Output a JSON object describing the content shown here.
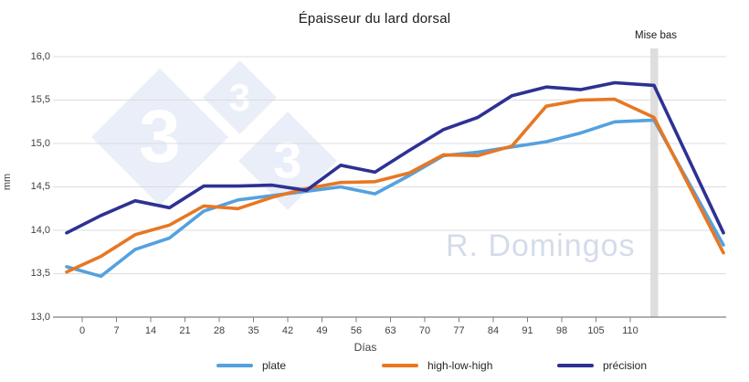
{
  "title": "Épaisseur du lard dorsal",
  "annotation": {
    "label": "Mise bas"
  },
  "watermark": {
    "text": "R. Domingos",
    "logo_digit": "3"
  },
  "axes": {
    "ylabel": "mm",
    "xlabel": "Días"
  },
  "legend": {
    "items": [
      {
        "label": "plate",
        "color": "#54a1e0"
      },
      {
        "label": "high-low-high",
        "color": "#e87722"
      },
      {
        "label": "précision",
        "color": "#2e3192"
      }
    ]
  },
  "chart_data": {
    "type": "line",
    "title": "Épaisseur du lard dorsal",
    "xlabel": "Días",
    "ylabel": "mm",
    "ylim": [
      13.0,
      16.0
    ],
    "ytick_step": 0.5,
    "ytick_labels": [
      "16,0",
      "15,5",
      "15,0",
      "14,5",
      "14,0",
      "13,5",
      "13,0"
    ],
    "x_days": [
      "0",
      "7",
      "14",
      "21",
      "28",
      "35",
      "42",
      "49",
      "56",
      "63",
      "70",
      "77",
      "84",
      "91",
      "98",
      "105",
      "110"
    ],
    "extra_points": [
      "mise-bas-bar",
      "post-farrowing-final"
    ],
    "annotation": {
      "label": "Mise bas",
      "style": "vertical-gray-bar",
      "position": "after day 110"
    },
    "grid": "horizontal",
    "legend_position": "bottom",
    "series": [
      {
        "name": "plate",
        "color": "#54a1e0",
        "values": [
          13.58,
          13.47,
          13.78,
          13.91,
          14.22,
          14.35,
          14.4,
          14.45,
          14.5,
          14.42,
          14.63,
          14.86,
          14.9,
          14.96,
          15.02,
          15.12,
          15.25,
          15.27,
          13.83
        ]
      },
      {
        "name": "high-low-high",
        "color": "#e87722",
        "values": [
          13.52,
          13.7,
          13.95,
          14.06,
          14.28,
          14.25,
          14.38,
          14.48,
          14.55,
          14.56,
          14.66,
          14.87,
          14.86,
          14.97,
          15.43,
          15.5,
          15.51,
          15.3,
          13.74
        ]
      },
      {
        "name": "précision",
        "color": "#2e3192",
        "values": [
          13.97,
          14.17,
          14.34,
          14.26,
          14.51,
          14.51,
          14.52,
          14.46,
          14.75,
          14.67,
          14.92,
          15.16,
          15.3,
          15.55,
          15.65,
          15.62,
          15.7,
          15.67,
          13.97
        ]
      }
    ]
  }
}
